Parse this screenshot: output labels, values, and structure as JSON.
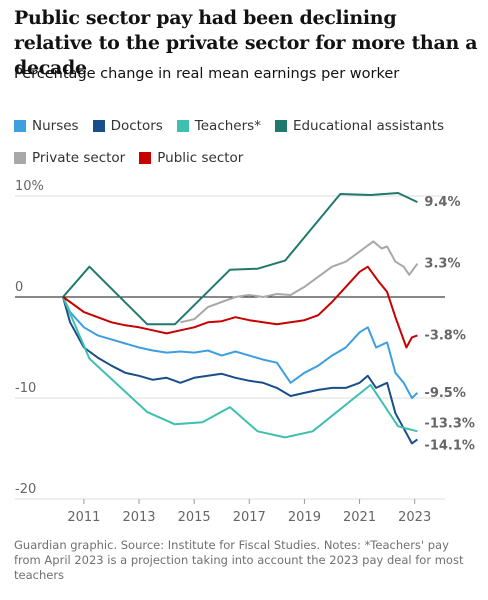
{
  "chart_data": {
    "type": "line",
    "title": "Public sector pay had been declining relative to the private sector for more than a decade",
    "subtitle": "Percentage change in real mean earnings per worker",
    "source": "Guardian graphic. Source: Institute for Fiscal Studies. Notes: *Teachers' pay from April 2023 is a projection taking into account the 2023 pay deal for most teachers",
    "xlim": [
      2008.5,
      2024.1
    ],
    "xticks": [
      2011,
      2013,
      2015,
      2017,
      2019,
      2021,
      2023
    ],
    "ylim": [
      -20,
      10
    ],
    "yticks": [
      -20,
      -10,
      0,
      {
        "value": 10,
        "label": "10%"
      }
    ],
    "grid": true,
    "legend_position": "top",
    "series": [
      {
        "name": "Nurses",
        "color": "#3d9ee0",
        "end_label": "-9.5%",
        "x": [
          2010.24,
          2010.5,
          2011,
          2011.5,
          2012,
          2012.5,
          2013,
          2013.5,
          2014,
          2014.5,
          2015,
          2015.5,
          2016,
          2016.5,
          2017,
          2017.5,
          2018,
          2018.5,
          2019,
          2019.5,
          2020,
          2020.5,
          2021,
          2021.3,
          2021.6,
          2022,
          2022.3,
          2022.6,
          2022.9,
          2023.1
        ],
        "values": [
          0,
          -1.5,
          -3.0,
          -3.8,
          -4.2,
          -4.6,
          -5.0,
          -5.3,
          -5.5,
          -5.4,
          -5.5,
          -5.3,
          -5.8,
          -5.4,
          -5.8,
          -6.2,
          -6.5,
          -8.5,
          -7.5,
          -6.8,
          -5.8,
          -5.0,
          -3.5,
          -3.0,
          -5.0,
          -4.5,
          -7.5,
          -8.5,
          -10.0,
          -9.5
        ]
      },
      {
        "name": "Doctors",
        "color": "#1a4e8a",
        "end_label": "-14.1%",
        "x": [
          2010.24,
          2010.5,
          2011,
          2011.5,
          2012,
          2012.5,
          2013,
          2013.5,
          2014,
          2014.5,
          2015,
          2015.5,
          2016,
          2016.5,
          2017,
          2017.5,
          2018,
          2018.5,
          2019,
          2019.5,
          2020,
          2020.5,
          2021,
          2021.3,
          2021.6,
          2022,
          2022.3,
          2022.6,
          2022.9,
          2023.1
        ],
        "values": [
          0,
          -2.5,
          -5.0,
          -6.0,
          -6.8,
          -7.5,
          -7.8,
          -8.2,
          -8.0,
          -8.5,
          -8.0,
          -7.8,
          -7.6,
          -8.0,
          -8.3,
          -8.5,
          -9.0,
          -9.8,
          -9.5,
          -9.2,
          -9.0,
          -9.0,
          -8.5,
          -7.8,
          -9.0,
          -8.5,
          -11.5,
          -13.0,
          -14.5,
          -14.1
        ]
      },
      {
        "name": "Teachers*",
        "color": "#3fbfb0",
        "end_label": "-13.3%",
        "x": [
          2010.24,
          2011.2,
          2013.3,
          2014.3,
          2015.3,
          2016.3,
          2017.3,
          2018.3,
          2019.3,
          2021.4,
          2022.4,
          2023.1
        ],
        "values": [
          0,
          -6.1,
          -11.4,
          -12.6,
          -12.4,
          -10.9,
          -13.3,
          -13.9,
          -13.3,
          -8.7,
          -12.8,
          -13.3
        ]
      },
      {
        "name": "Educational assistants",
        "color": "#1f7a6d",
        "end_label": "9.4%",
        "x": [
          2010.24,
          2011.2,
          2013.3,
          2014.3,
          2016.3,
          2017.3,
          2018.3,
          2020.3,
          2021.4,
          2022.4,
          2023.1
        ],
        "values": [
          0,
          3.0,
          -2.7,
          -2.7,
          2.7,
          2.8,
          3.6,
          10.2,
          10.1,
          10.3,
          9.4
        ]
      },
      {
        "name": "Private sector",
        "color": "#a8a8a8",
        "end_label": "3.3%",
        "x": [
          2014.5,
          2015,
          2015.5,
          2016,
          2016.5,
          2017,
          2017.5,
          2018,
          2018.5,
          2019,
          2019.5,
          2020,
          2020.5,
          2021,
          2021.5,
          2021.8,
          2022,
          2022.3,
          2022.6,
          2022.8,
          2023.1
        ],
        "values": [
          -2.5,
          -2.2,
          -1.0,
          -0.5,
          0.0,
          0.2,
          0.0,
          0.3,
          0.2,
          1.0,
          2.0,
          3.0,
          3.5,
          4.5,
          5.5,
          4.8,
          5.0,
          3.5,
          3.0,
          2.2,
          3.3
        ]
      },
      {
        "name": "Public sector",
        "color": "#c70000",
        "end_label": "-3.8%",
        "x": [
          2010.24,
          2010.5,
          2011,
          2011.5,
          2012,
          2012.5,
          2013,
          2013.5,
          2014,
          2014.5,
          2015,
          2015.5,
          2016,
          2016.5,
          2017,
          2017.5,
          2018,
          2018.5,
          2019,
          2019.5,
          2020,
          2020.5,
          2021,
          2021.3,
          2021.7,
          2022,
          2022.3,
          2022.5,
          2022.7,
          2022.9,
          2023.1
        ],
        "values": [
          0,
          -0.5,
          -1.5,
          -2.0,
          -2.5,
          -2.8,
          -3.0,
          -3.3,
          -3.6,
          -3.3,
          -3.0,
          -2.5,
          -2.4,
          -2.0,
          -2.3,
          -2.5,
          -2.7,
          -2.5,
          -2.3,
          -1.8,
          -0.5,
          1.0,
          2.5,
          3.0,
          1.5,
          0.5,
          -2.0,
          -3.5,
          -5.0,
          -4.0,
          -3.8
        ]
      }
    ]
  }
}
